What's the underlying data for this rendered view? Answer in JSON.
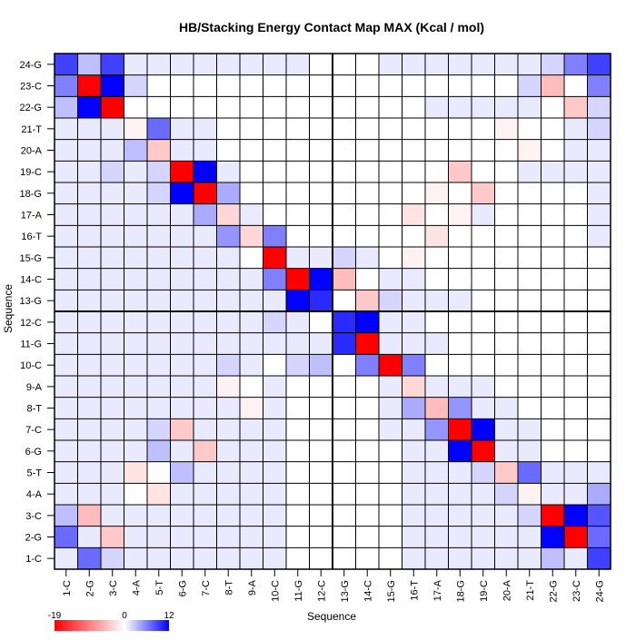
{
  "chart_data": {
    "type": "heatmap",
    "title": "HB/Stacking Energy Contact Map MAX (Kcal / mol)",
    "xlabel": "Sequence",
    "ylabel": "Sequence",
    "labels": [
      "1-C",
      "2-G",
      "3-C",
      "4-A",
      "5-T",
      "6-G",
      "7-C",
      "8-T",
      "9-A",
      "10-C",
      "11-G",
      "12-C",
      "13-G",
      "14-C",
      "15-G",
      "16-T",
      "17-A",
      "18-G",
      "19-C",
      "20-A",
      "21-T",
      "22-G",
      "23-C",
      "24-G"
    ],
    "colorbar": {
      "min": -19,
      "mid": 0,
      "max": 12,
      "min_label": "-19",
      "mid_label": "0",
      "max_label": "12",
      "min_color": "#ff0000",
      "mid_color": "#ffffff",
      "max_color": "#0000ff"
    },
    "strand_split_after": 12,
    "values": [
      [
        9,
        3,
        9,
        1,
        1,
        1,
        1,
        1,
        1,
        1,
        1,
        0,
        0,
        0,
        1,
        1,
        1,
        1,
        1,
        1,
        1,
        2,
        6,
        9
      ],
      [
        6,
        -19,
        12,
        2,
        0,
        0,
        0,
        0,
        0,
        0,
        0,
        0,
        0,
        0,
        0,
        0,
        0,
        0,
        0,
        0,
        2,
        -5,
        0,
        6
      ],
      [
        3,
        12,
        -19,
        0,
        0,
        0,
        0,
        0,
        0,
        0,
        0,
        0,
        0,
        0,
        0,
        0,
        1,
        1,
        1,
        1,
        1,
        0,
        -4,
        2
      ],
      [
        1,
        1,
        1,
        -1,
        7,
        1,
        1,
        0,
        0,
        0,
        0,
        0,
        0,
        0,
        0,
        0,
        0,
        0,
        0,
        -1,
        0,
        0,
        1,
        2
      ],
      [
        1,
        1,
        1,
        3,
        -4,
        1,
        1,
        0,
        0,
        0,
        0,
        0,
        0,
        0,
        0,
        0,
        0,
        0,
        0,
        0,
        -1,
        0,
        1,
        1
      ],
      [
        1,
        1,
        2,
        1,
        2,
        -19,
        12,
        1,
        0,
        0,
        0,
        0,
        0,
        0,
        0,
        0,
        0,
        -4,
        0,
        0,
        1,
        1,
        1,
        1
      ],
      [
        1,
        1,
        1,
        1,
        2,
        12,
        -19,
        4,
        0,
        0,
        0,
        0,
        0,
        0,
        0,
        0,
        -1,
        0,
        -4,
        0,
        0,
        0,
        0,
        1
      ],
      [
        1,
        1,
        1,
        1,
        1,
        1,
        4,
        -3,
        1,
        0,
        0,
        0,
        0,
        0,
        0,
        -2,
        0,
        -1,
        1,
        0,
        0,
        0,
        0,
        1
      ],
      [
        1,
        1,
        1,
        1,
        1,
        1,
        1,
        5,
        -3,
        6,
        0,
        0,
        0,
        0,
        0,
        0,
        -2,
        0,
        0,
        0,
        0,
        0,
        0,
        1
      ],
      [
        1,
        1,
        1,
        1,
        1,
        1,
        1,
        1,
        0,
        -19,
        1,
        1,
        2,
        1,
        0,
        -1,
        0,
        0,
        0,
        0,
        0,
        0,
        0,
        0
      ],
      [
        1,
        1,
        1,
        1,
        1,
        1,
        1,
        1,
        1,
        6,
        -19,
        12,
        -5,
        0,
        1,
        1,
        0,
        0,
        0,
        0,
        0,
        0,
        0,
        0
      ],
      [
        1,
        1,
        1,
        1,
        1,
        1,
        1,
        1,
        1,
        1,
        12,
        10,
        0,
        -4,
        2,
        1,
        1,
        1,
        0,
        0,
        0,
        0,
        0,
        0
      ],
      [
        1,
        1,
        1,
        1,
        1,
        1,
        1,
        1,
        1,
        2,
        1,
        0,
        10,
        12,
        1,
        1,
        0,
        0,
        0,
        0,
        0,
        0,
        0,
        0
      ],
      [
        1,
        1,
        1,
        1,
        1,
        1,
        1,
        1,
        1,
        1,
        1,
        1,
        10,
        -19,
        1,
        1,
        1,
        0,
        0,
        0,
        0,
        0,
        0,
        0
      ],
      [
        1,
        1,
        1,
        1,
        1,
        1,
        1,
        2,
        1,
        0,
        2,
        3,
        0,
        6,
        -19,
        6,
        0,
        0,
        0,
        0,
        0,
        0,
        0,
        0
      ],
      [
        1,
        1,
        1,
        1,
        1,
        1,
        1,
        -1,
        0,
        1,
        0,
        0,
        0,
        0,
        1,
        -3,
        1,
        1,
        1,
        0,
        0,
        0,
        0,
        0
      ],
      [
        1,
        1,
        1,
        1,
        1,
        1,
        1,
        1,
        -1,
        1,
        0,
        0,
        0,
        0,
        1,
        4,
        -5,
        5,
        1,
        1,
        0,
        0,
        0,
        0
      ],
      [
        1,
        1,
        1,
        1,
        2,
        -4,
        1,
        1,
        1,
        1,
        0,
        0,
        0,
        0,
        1,
        1,
        5,
        -19,
        12,
        1,
        1,
        0,
        0,
        0
      ],
      [
        1,
        1,
        1,
        1,
        3,
        1,
        -4,
        1,
        1,
        1,
        0,
        0,
        0,
        0,
        0,
        1,
        1,
        12,
        -19,
        1,
        1,
        0,
        0,
        0
      ],
      [
        1,
        1,
        1,
        -2,
        0,
        3,
        1,
        1,
        1,
        1,
        0,
        0,
        0,
        0,
        0,
        1,
        1,
        1,
        2,
        -4,
        7,
        1,
        1,
        1
      ],
      [
        1,
        1,
        1,
        0,
        -2,
        1,
        1,
        1,
        1,
        1,
        0,
        0,
        0,
        0,
        0,
        1,
        1,
        1,
        1,
        2,
        -1,
        1,
        1,
        4
      ],
      [
        3,
        -5,
        1,
        1,
        1,
        1,
        1,
        1,
        1,
        1,
        0,
        0,
        0,
        0,
        0,
        1,
        1,
        1,
        1,
        1,
        2,
        -19,
        12,
        8
      ],
      [
        7,
        1,
        -4,
        1,
        1,
        1,
        1,
        1,
        1,
        1,
        0,
        0,
        0,
        0,
        0,
        1,
        1,
        1,
        1,
        1,
        1,
        12,
        -19,
        7
      ],
      [
        1,
        7,
        2,
        1,
        1,
        1,
        1,
        1,
        1,
        1,
        0,
        0,
        0,
        0,
        0,
        1,
        1,
        1,
        1,
        1,
        1,
        3,
        1,
        9
      ]
    ]
  }
}
